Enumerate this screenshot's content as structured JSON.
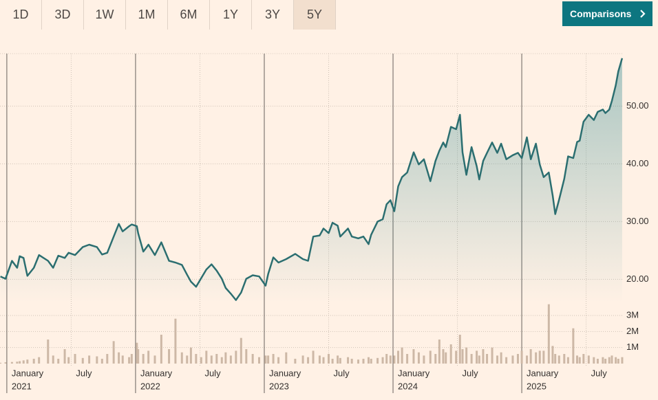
{
  "toolbar": {
    "ranges": [
      "1D",
      "3D",
      "1W",
      "1M",
      "6M",
      "1Y",
      "3Y",
      "5Y"
    ],
    "selected": 7,
    "button": "Comparisons"
  },
  "chart_data": {
    "type": "line",
    "x": [
      2020.95,
      2020.99,
      2021.04,
      2021.08,
      2021.1,
      2021.13,
      2021.16,
      2021.21,
      2021.25,
      2021.32,
      2021.36,
      2021.4,
      2021.45,
      2021.48,
      2021.53,
      2021.59,
      2021.64,
      2021.7,
      2021.74,
      2021.78,
      2021.83,
      2021.87,
      2021.9,
      2021.95,
      2021.97,
      2022.01,
      2022.02,
      2022.06,
      2022.1,
      2022.15,
      2022.2,
      2022.26,
      2022.31,
      2022.36,
      2022.4,
      2022.43,
      2022.47,
      2022.51,
      2022.55,
      2022.59,
      2022.63,
      2022.67,
      2022.7,
      2022.74,
      2022.78,
      2022.82,
      2022.86,
      2022.91,
      2022.96,
      2023.01,
      2023.03,
      2023.07,
      2023.11,
      2023.17,
      2023.24,
      2023.3,
      2023.34,
      2023.38,
      2023.43,
      2023.46,
      2023.5,
      2023.53,
      2023.57,
      2023.59,
      2023.65,
      2023.68,
      2023.73,
      2023.77,
      2023.81,
      2023.83,
      2023.88,
      2023.92,
      2023.95,
      2023.98,
      2024.01,
      2024.04,
      2024.07,
      2024.11,
      2024.16,
      2024.2,
      2024.24,
      2024.29,
      2024.33,
      2024.36,
      2024.39,
      2024.41,
      2024.45,
      2024.49,
      2024.52,
      2024.54,
      2024.57,
      2024.61,
      2024.65,
      2024.67,
      2024.7,
      2024.73,
      2024.77,
      2024.81,
      2024.84,
      2024.88,
      2024.93,
      2024.97,
      2025.0,
      2025.04,
      2025.07,
      2025.11,
      2025.14,
      2025.17,
      2025.21,
      2025.24,
      2025.26,
      2025.29,
      2025.33,
      2025.36,
      2025.4,
      2025.43,
      2025.45,
      2025.48,
      2025.52,
      2025.56,
      2025.59,
      2025.63,
      2025.65,
      2025.68,
      2025.7,
      2025.73,
      2025.75,
      2025.78
    ],
    "series": [
      {
        "color": "#2b6e70",
        "values": [
          20.5,
          20.1,
          23.2,
          22,
          24,
          23.7,
          20.6,
          22,
          24.2,
          23.2,
          22,
          24.1,
          23.7,
          24.6,
          24.2,
          25.6,
          26,
          25.6,
          24.3,
          24.6,
          27.4,
          29.6,
          28.3,
          29.2,
          29.5,
          29.2,
          28,
          24.8,
          26,
          24.2,
          26.4,
          23.2,
          22.9,
          22.5,
          20.8,
          19.6,
          18.7,
          20.2,
          21.7,
          22.6,
          21.5,
          20.1,
          18.5,
          17.5,
          16.4,
          17.7,
          20.1,
          20.7,
          20.5,
          18.9,
          20.9,
          23.8,
          22.9,
          23.5,
          24.4,
          23.5,
          23.2,
          27.4,
          27.6,
          28.8,
          28,
          29.8,
          29.3,
          27.4,
          28.8,
          27.4,
          27.1,
          27.4,
          26.1,
          27.7,
          30,
          30.4,
          33,
          33.7,
          31.8,
          36.1,
          37.7,
          38.5,
          42,
          39.9,
          40.8,
          37,
          40.5,
          42.3,
          43.7,
          42.9,
          46.4,
          46,
          48.5,
          42,
          38.1,
          42.9,
          39.6,
          37.3,
          40.5,
          41.9,
          43.7,
          41.9,
          43.5,
          40.8,
          41.5,
          41.9,
          41,
          44.6,
          40.8,
          43.5,
          39.9,
          37.7,
          38.5,
          34.5,
          31.3,
          33.8,
          37.4,
          41.3,
          41,
          43.8,
          44,
          47.3,
          48.5,
          47.6,
          49,
          49.4,
          48.8,
          49.4,
          50.9,
          53.6,
          56,
          58.3
        ]
      },
      {
        "color": "#cdb8a6",
        "axis": "y2",
        "values": [
          0.05,
          0.08,
          0.1,
          0.12,
          0.15,
          0.2,
          0.25,
          0.3,
          0.4,
          1.5,
          0.5,
          0.3,
          0.9,
          0.4,
          0.6,
          0.35,
          0.5,
          0.45,
          0.3,
          0.6,
          1.4,
          0.7,
          0.5,
          0.4,
          0.6,
          1.3,
          0.9,
          0.6,
          0.8,
          0.5,
          1.8,
          0.9,
          2.8,
          0.7,
          0.5,
          1.0,
          0.6,
          0.4,
          0.8,
          0.5,
          0.6,
          0.4,
          0.7,
          0.5,
          0.8,
          1.6,
          0.9,
          0.6,
          0.4,
          0.5,
          0.5,
          0.6,
          0.4,
          0.7,
          0.3,
          0.5,
          0.4,
          0.8,
          0.5,
          0.4,
          0.6,
          0.3,
          0.5,
          0.35,
          0.4,
          0.3,
          0.25,
          0.3,
          0.4,
          0.3,
          0.35,
          0.4,
          0.6,
          0.5,
          0.5,
          0.8,
          1.0,
          0.6,
          0.9,
          0.7,
          0.5,
          0.8,
          0.6,
          1.5,
          0.9,
          0.7,
          1.2,
          0.8,
          1.8,
          0.9,
          1.0,
          0.6,
          0.8,
          0.5,
          0.9,
          0.6,
          1.0,
          0.5,
          0.7,
          0.4,
          0.5,
          0.6,
          0.8,
          0.5,
          0.9,
          0.7,
          0.8,
          0.8,
          3.7,
          1.1,
          0.6,
          0.5,
          0.6,
          0.4,
          2.2,
          0.5,
          0.4,
          0.6,
          0.5,
          0.4,
          0.3,
          0.4,
          0.3,
          0.4,
          0.5,
          0.4,
          0.3,
          0.4
        ]
      }
    ],
    "xlim": [
      2020.947,
      2025.807
    ],
    "xticks": [
      {
        "value": 2021,
        "label": "January"
      },
      {
        "value": 2021.5,
        "label": "July"
      },
      {
        "value": 2022,
        "label": "January"
      },
      {
        "value": 2022.5,
        "label": "July"
      },
      {
        "value": 2023,
        "label": "January"
      },
      {
        "value": 2023.5,
        "label": "July"
      },
      {
        "value": 2024,
        "label": "January"
      },
      {
        "value": 2024.5,
        "label": "July"
      },
      {
        "value": 2025,
        "label": "January"
      },
      {
        "value": 2025.5,
        "label": "July"
      }
    ],
    "xyears": [
      2021,
      2022,
      2023,
      2024,
      2025
    ],
    "ylim": [
      16,
      61
    ],
    "yticks": [
      {
        "value": 20,
        "label": "20.00"
      },
      {
        "value": 30,
        "label": "30.00"
      },
      {
        "value": 40,
        "label": "40.00"
      },
      {
        "value": 50,
        "label": "50.00"
      }
    ],
    "y2lim": [
      0,
      4.5
    ],
    "y2ticks": [
      {
        "value": 1,
        "label": "1M"
      },
      {
        "value": 2,
        "label": "2M"
      },
      {
        "value": 3,
        "label": "3M"
      }
    ],
    "grid": true
  }
}
